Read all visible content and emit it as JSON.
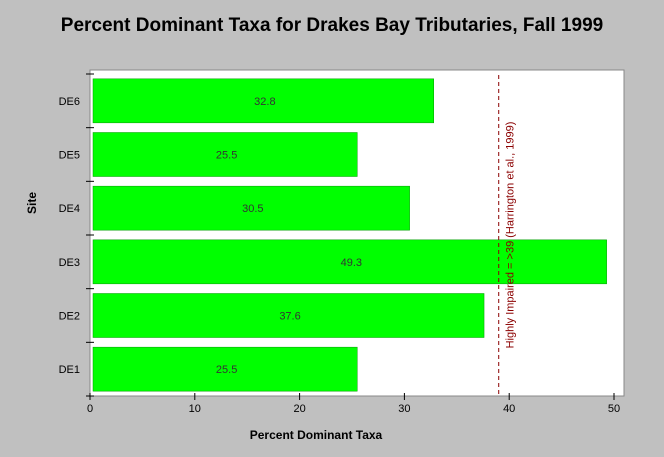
{
  "chart_data": {
    "type": "bar",
    "orientation": "horizontal",
    "title": "Percent Dominant Taxa for Drakes Bay Tributaries, Fall 1999",
    "xlabel": "Percent Dominant Taxa",
    "ylabel": "Site",
    "categories": [
      "DE6",
      "DE5",
      "DE4",
      "DE3",
      "DE2",
      "DE1"
    ],
    "values": [
      32.8,
      25.5,
      30.5,
      49.3,
      37.6,
      25.5
    ],
    "data_labels": [
      "32.8",
      "25.5",
      "30.5",
      "49.3",
      "37.6",
      "25.5"
    ],
    "xlim": [
      0,
      50
    ],
    "xticks": [
      0,
      10,
      20,
      30,
      40,
      50
    ],
    "grid": false,
    "bar_color": "#00ff00",
    "reference_line": {
      "value": 39,
      "label": "Highly Impaired = >39 (Harrington et al., 1999)",
      "color": "#8b0000",
      "style": "dashed"
    }
  },
  "colors": {
    "background": "#c0c0c0",
    "plot_background": "#ffffff",
    "bar": "#00ff00"
  }
}
